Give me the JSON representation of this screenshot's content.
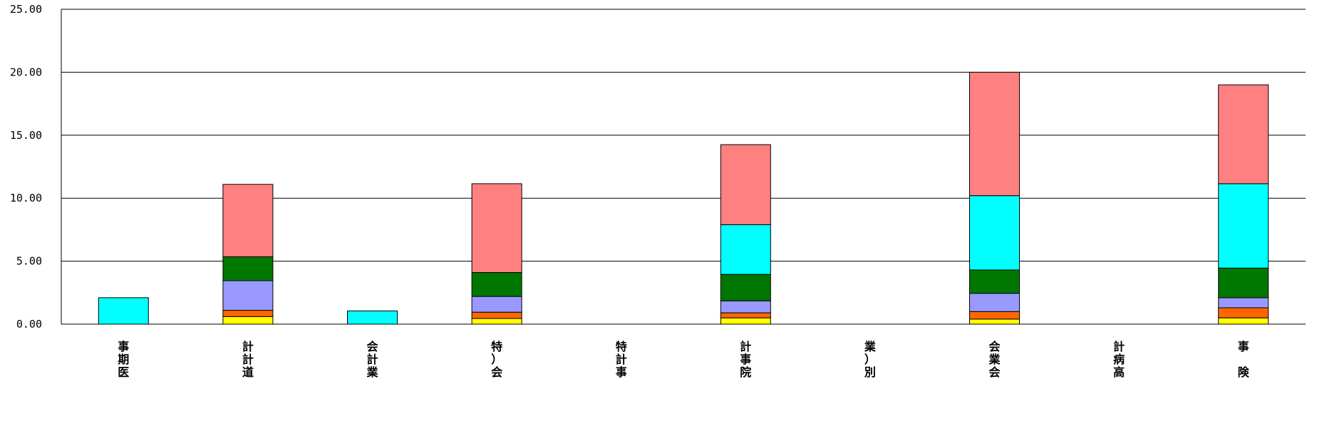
{
  "chart_data": {
    "type": "bar",
    "stacked": true,
    "categories": [
      [
        "事",
        "期",
        "医"
      ],
      [
        "計",
        "計",
        "道"
      ],
      [
        "会",
        "計",
        "業"
      ],
      [
        "特",
        "）",
        "会"
      ],
      [
        "特",
        "計",
        "事"
      ],
      [
        "計",
        "事",
        "院"
      ],
      [
        "業",
        "）",
        "別"
      ],
      [
        "会",
        "業",
        "会"
      ],
      [
        "計",
        "病",
        "高"
      ],
      [
        "事",
        "",
        "険"
      ]
    ],
    "ylim": [
      0,
      25
    ],
    "yticks": [
      "0.00",
      "5.00",
      "10.00",
      "15.00",
      "20.00",
      "25.00"
    ],
    "grid": true,
    "series": [
      {
        "color": "#ffff00",
        "values": [
          0,
          0.6,
          0,
          0.45,
          0,
          0.5,
          0,
          0.4,
          0,
          0.5
        ]
      },
      {
        "color": "#ff6600",
        "values": [
          0,
          0.5,
          0,
          0.5,
          0,
          0.4,
          0,
          0.6,
          0,
          0.8
        ]
      },
      {
        "color": "#9999ff",
        "values": [
          0,
          2.35,
          0,
          1.25,
          0,
          0.95,
          0,
          1.45,
          0,
          0.8
        ]
      },
      {
        "color": "#007700",
        "values": [
          0,
          1.9,
          0,
          1.9,
          0,
          2.1,
          0,
          1.85,
          0,
          2.35
        ]
      },
      {
        "color": "#00ffff",
        "values": [
          2.1,
          0,
          1.05,
          0,
          0,
          3.95,
          0,
          5.9,
          0,
          6.7
        ]
      },
      {
        "color": "#ff8080",
        "values": [
          0,
          5.75,
          0,
          7.05,
          0,
          6.35,
          0,
          9.8,
          0,
          7.85
        ]
      }
    ]
  }
}
